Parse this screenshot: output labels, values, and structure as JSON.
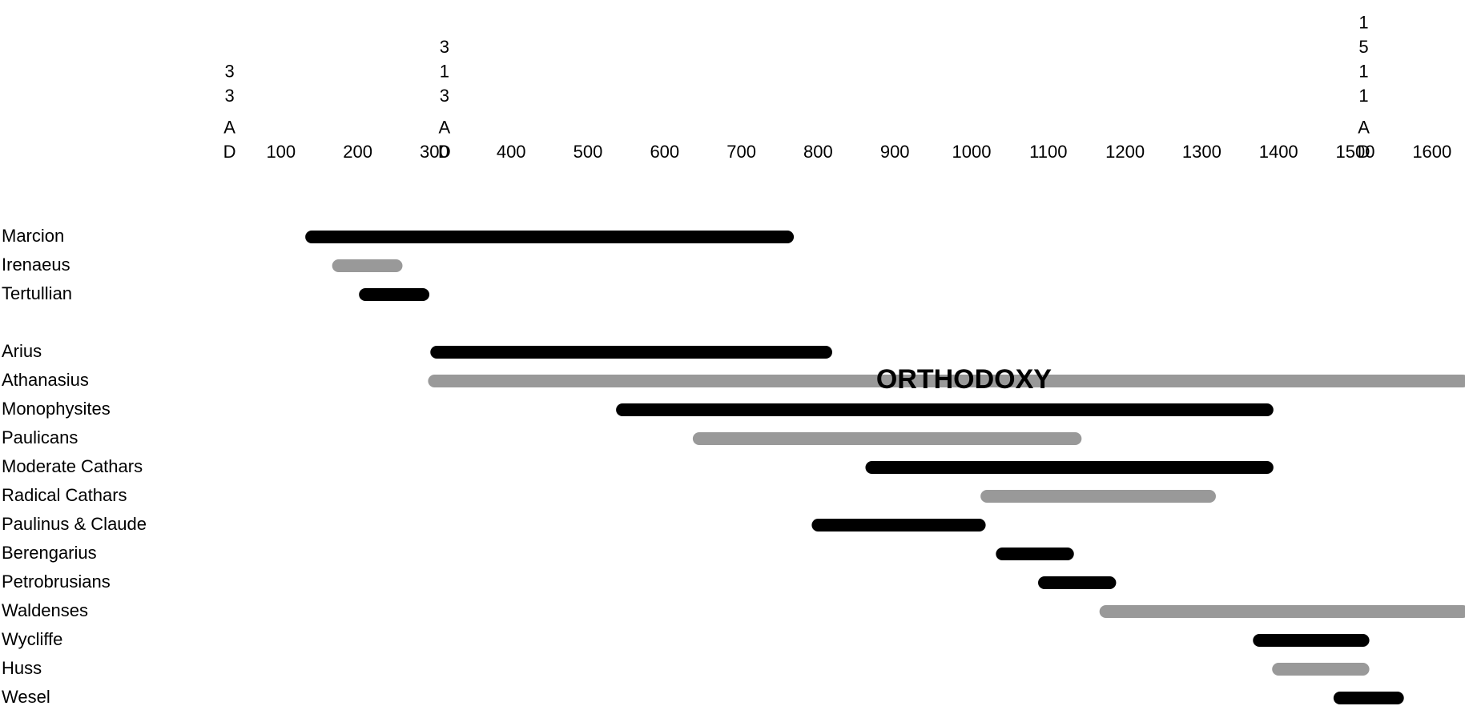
{
  "chart_data": {
    "type": "gantt",
    "title": "",
    "xlabel": "",
    "ylabel": "",
    "x_range": [
      0,
      1680
    ],
    "ticks": [
      {
        "value": 0,
        "label": ""
      },
      {
        "value": 100,
        "label": "100"
      },
      {
        "value": 200,
        "label": "200"
      },
      {
        "value": 300,
        "label": "300"
      },
      {
        "value": 400,
        "label": "400"
      },
      {
        "value": 500,
        "label": "500"
      },
      {
        "value": 600,
        "label": "600"
      },
      {
        "value": 700,
        "label": "700"
      },
      {
        "value": 800,
        "label": "800"
      },
      {
        "value": 900,
        "label": "900"
      },
      {
        "value": 1000,
        "label": "1000"
      },
      {
        "value": 1100,
        "label": "1100"
      },
      {
        "value": 1200,
        "label": "1200"
      },
      {
        "value": 1300,
        "label": "1300"
      },
      {
        "value": 1400,
        "label": "1400"
      },
      {
        "value": 1500,
        "label": "1500"
      },
      {
        "value": 1600,
        "label": "1600"
      }
    ],
    "era_markers": [
      {
        "value": 33,
        "digits": [
          "3",
          "3"
        ],
        "era": [
          "A",
          "D"
        ]
      },
      {
        "value": 313,
        "digits": [
          "3",
          "1",
          "3"
        ],
        "era": [
          "A",
          "D"
        ]
      },
      {
        "value": 1511,
        "digits": [
          "1",
          "5",
          "1",
          "1"
        ],
        "era": [
          "A",
          "D"
        ]
      }
    ],
    "colors": {
      "black": "#000000",
      "grey": "#999999"
    },
    "rows": [
      {
        "name": "Marcion",
        "start": 140,
        "end": 760,
        "color": "black"
      },
      {
        "name": "Irenaeus",
        "start": 175,
        "end": 250,
        "color": "grey"
      },
      {
        "name": "Tertullian",
        "start": 210,
        "end": 285,
        "color": "black"
      },
      {
        "name": "",
        "spacer": true
      },
      {
        "name": "Arius",
        "start": 303,
        "end": 810,
        "color": "black"
      },
      {
        "name": "Athanasius",
        "start": 300,
        "end": 1640,
        "color": "grey"
      },
      {
        "name": "Monophysites",
        "start": 545,
        "end": 1385,
        "color": "black"
      },
      {
        "name": "Paulicans",
        "start": 645,
        "end": 1135,
        "color": "grey"
      },
      {
        "name": "Moderate Cathars",
        "start": 870,
        "end": 1385,
        "color": "black"
      },
      {
        "name": "Radical Cathars",
        "start": 1020,
        "end": 1310,
        "color": "grey"
      },
      {
        "name": "Paulinus & Claude",
        "start": 800,
        "end": 1010,
        "color": "black"
      },
      {
        "name": "Berengarius",
        "start": 1040,
        "end": 1125,
        "color": "black"
      },
      {
        "name": "Petrobrusians",
        "start": 1095,
        "end": 1180,
        "color": "black"
      },
      {
        "name": "Waldenses",
        "start": 1175,
        "end": 1640,
        "color": "grey"
      },
      {
        "name": "Wycliffe",
        "start": 1375,
        "end": 1510,
        "color": "black"
      },
      {
        "name": "Huss",
        "start": 1400,
        "end": 1510,
        "color": "grey"
      },
      {
        "name": "Wesel",
        "start": 1480,
        "end": 1555,
        "color": "black"
      }
    ],
    "annotations": [
      {
        "text": "ORTHODOXY",
        "x": 990,
        "row": "Athanasius"
      }
    ]
  }
}
